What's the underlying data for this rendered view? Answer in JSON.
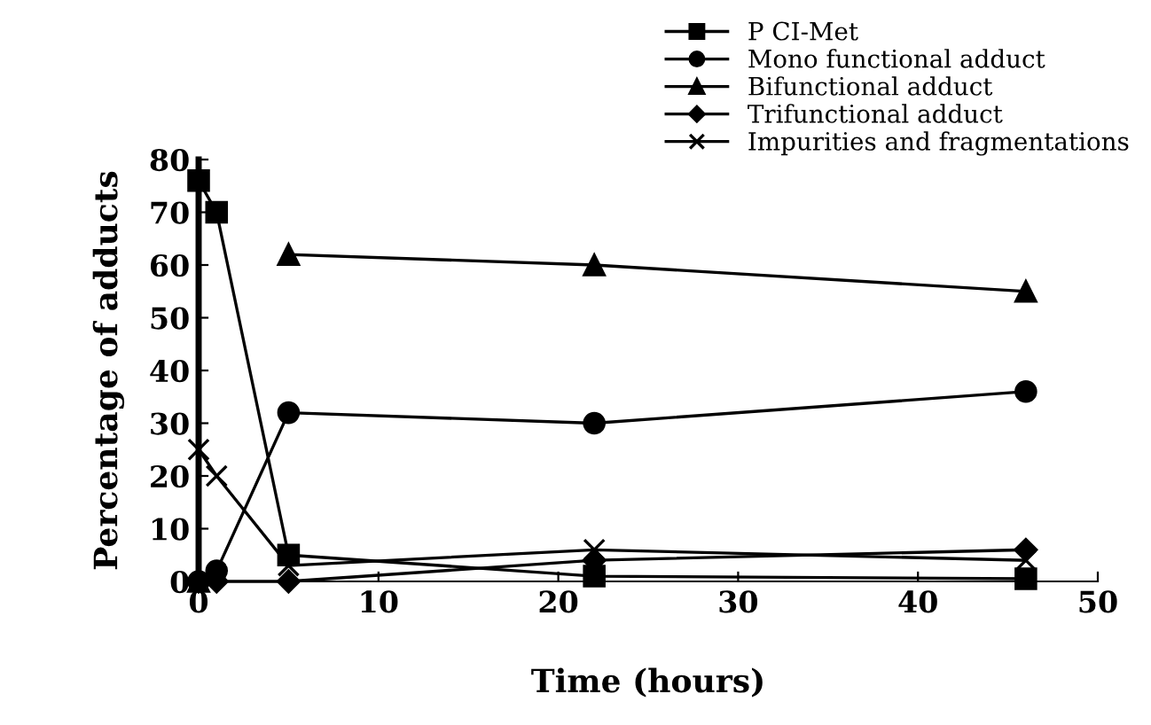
{
  "chart_data": {
    "type": "line",
    "xlabel": "Time (hours)",
    "ylabel": "Percentage of adducts",
    "x": [
      0,
      1,
      5,
      22,
      46
    ],
    "series": [
      {
        "name": "P CI-Met",
        "color": "#000000",
        "marker": "square",
        "values": [
          76,
          70,
          5,
          1,
          0.5
        ]
      },
      {
        "name": "Mono functional adduct",
        "color": "#000000",
        "marker": "circle",
        "values": [
          0,
          2,
          32,
          30,
          36
        ]
      },
      {
        "name": "Bifunctional adduct",
        "color": "#000000",
        "marker": "triangle",
        "values": [
          0,
          null,
          62,
          60,
          55
        ]
      },
      {
        "name": "Trifunctional adduct",
        "color": "#000000",
        "marker": "diamond",
        "values": [
          0,
          0,
          0,
          4,
          6
        ]
      },
      {
        "name": "Impurities and fragmentations",
        "color": "#000000",
        "marker": "cross",
        "values": [
          25,
          20,
          3,
          6,
          4
        ]
      }
    ],
    "xlim": [
      0,
      50
    ],
    "xticks": [
      0,
      10,
      20,
      30,
      40,
      50
    ],
    "ylim": [
      0,
      80
    ],
    "yticks": [
      0,
      10,
      20,
      30,
      40,
      50,
      60,
      70,
      80
    ],
    "grid": false,
    "legend": "top right",
    "line_style": "solid"
  }
}
